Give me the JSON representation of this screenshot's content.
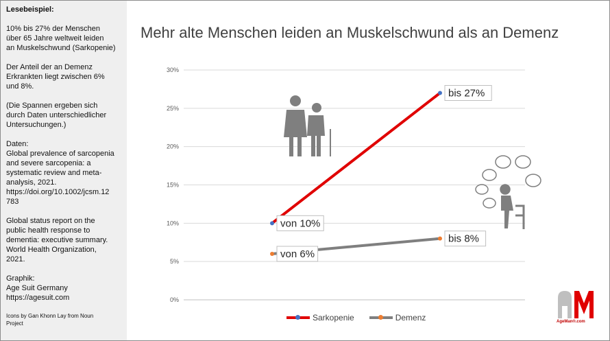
{
  "sidebar": {
    "heading": "Lesebeispiel:",
    "paragraphs": [
      [
        "10% bis 27% der Menschen",
        "über 65 Jahre weltweit leiden",
        "an Muskelschwund (Sarkopenie)"
      ],
      [
        "Der Anteil der an Demenz",
        "Erkrankten liegt zwischen 6%",
        "und 8%."
      ],
      [
        "(Die Spannen ergeben sich",
        "durch Daten unterschiedlicher",
        "Untersuchungen.)"
      ],
      [
        "Daten:",
        "Global prevalence of sarcopenia",
        "and severe sarcopenia: a",
        "systematic review and meta-",
        "analysis, 2021.",
        "https://doi.org/10.1002/jcsm.12",
        "783"
      ],
      [
        "Global status report on the",
        "public health response to",
        "dementia: executive summary.",
        "World Health Organization,",
        "2021."
      ],
      [
        "Graphik:",
        "Age Suit Germany",
        "https://agesuit.com"
      ]
    ],
    "credits": [
      "Icons by Gan Khonn Lay from Noun",
      "Project"
    ]
  },
  "logo": {
    "text": "AgeMan®.com"
  },
  "chart_data": {
    "type": "line",
    "title": "Mehr alte Menschen leiden an Muskelschwund als an Demenz",
    "x": [
      0,
      1
    ],
    "ylim": [
      0,
      30
    ],
    "yticks": [
      "0%",
      "5%",
      "10%",
      "15%",
      "20%",
      "25%",
      "30%"
    ],
    "grid": true,
    "legend_position": "bottom",
    "series": [
      {
        "name": "Sarkopenie",
        "values": [
          10,
          27
        ],
        "line_color": "#e00000",
        "marker_color": "#4472c4",
        "labels": [
          "von 10%",
          "bis 27%"
        ]
      },
      {
        "name": "Demenz",
        "values": [
          6,
          8
        ],
        "line_color": "#7f7f7f",
        "marker_color": "#ed7d31",
        "labels": [
          "von 6%",
          "bis 8%"
        ]
      }
    ],
    "icons": [
      "elderly-couple-icon",
      "thinking-person-icon"
    ]
  }
}
